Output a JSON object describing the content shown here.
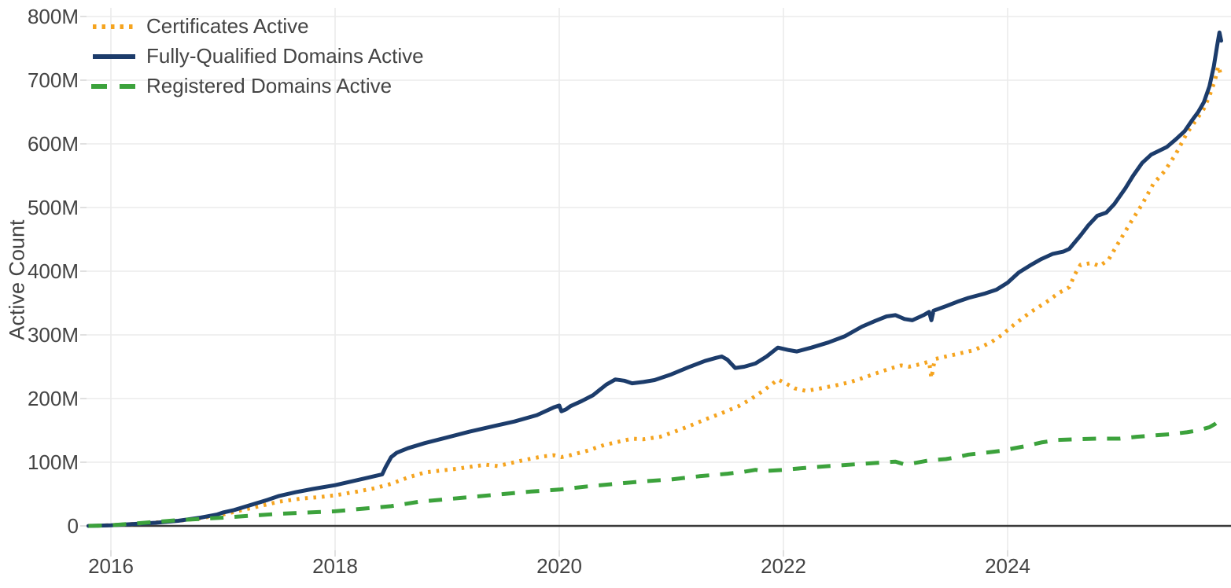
{
  "chart_data": {
    "type": "line",
    "title": "",
    "xlabel": "",
    "ylabel": "Active Count",
    "grid": true,
    "legend_position": "top-left",
    "x_range_years": [
      2015.78,
      2025.96
    ],
    "ylim_millions": [
      0,
      800
    ],
    "y_ticks": [
      {
        "label": "0",
        "value": 0
      },
      {
        "label": "100M",
        "value": 100
      },
      {
        "label": "200M",
        "value": 200
      },
      {
        "label": "300M",
        "value": 300
      },
      {
        "label": "400M",
        "value": 400
      },
      {
        "label": "500M",
        "value": 500
      },
      {
        "label": "600M",
        "value": 600
      },
      {
        "label": "700M",
        "value": 700
      },
      {
        "label": "800M",
        "value": 800
      }
    ],
    "x_ticks": [
      {
        "label": "2016",
        "year": 2016
      },
      {
        "label": "2018",
        "year": 2018
      },
      {
        "label": "2020",
        "year": 2020
      },
      {
        "label": "2022",
        "year": 2022
      },
      {
        "label": "2024",
        "year": 2024
      }
    ],
    "series": [
      {
        "name": "Certificates Active",
        "color": "#f5a41f",
        "style": "dotted",
        "points_year_millions": [
          [
            2015.8,
            0
          ],
          [
            2016.0,
            1
          ],
          [
            2016.3,
            4
          ],
          [
            2016.6,
            8
          ],
          [
            2016.8,
            12
          ],
          [
            2017.0,
            18
          ],
          [
            2017.2,
            26
          ],
          [
            2017.35,
            32
          ],
          [
            2017.5,
            38
          ],
          [
            2017.7,
            43
          ],
          [
            2017.85,
            45
          ],
          [
            2018.0,
            48
          ],
          [
            2018.2,
            54
          ],
          [
            2018.35,
            59
          ],
          [
            2018.5,
            66
          ],
          [
            2018.65,
            76
          ],
          [
            2018.8,
            84
          ],
          [
            2018.95,
            87
          ],
          [
            2019.1,
            90
          ],
          [
            2019.25,
            94
          ],
          [
            2019.35,
            96
          ],
          [
            2019.45,
            94
          ],
          [
            2019.55,
            98
          ],
          [
            2019.7,
            104
          ],
          [
            2019.85,
            109
          ],
          [
            2019.95,
            111
          ],
          [
            2020.02,
            108
          ],
          [
            2020.1,
            111
          ],
          [
            2020.25,
            118
          ],
          [
            2020.4,
            127
          ],
          [
            2020.55,
            133
          ],
          [
            2020.65,
            137
          ],
          [
            2020.75,
            136
          ],
          [
            2020.9,
            140
          ],
          [
            2021.0,
            146
          ],
          [
            2021.15,
            156
          ],
          [
            2021.3,
            167
          ],
          [
            2021.45,
            177
          ],
          [
            2021.6,
            188
          ],
          [
            2021.7,
            198
          ],
          [
            2021.8,
            210
          ],
          [
            2021.88,
            220
          ],
          [
            2021.95,
            230
          ],
          [
            2022.03,
            223
          ],
          [
            2022.1,
            216
          ],
          [
            2022.2,
            212
          ],
          [
            2022.3,
            215
          ],
          [
            2022.45,
            220
          ],
          [
            2022.6,
            226
          ],
          [
            2022.72,
            233
          ],
          [
            2022.85,
            241
          ],
          [
            2022.95,
            247
          ],
          [
            2023.05,
            252
          ],
          [
            2023.12,
            250
          ],
          [
            2023.22,
            254
          ],
          [
            2023.3,
            258
          ],
          [
            2023.32,
            232
          ],
          [
            2023.35,
            262
          ],
          [
            2023.45,
            266
          ],
          [
            2023.55,
            270
          ],
          [
            2023.7,
            276
          ],
          [
            2023.85,
            288
          ],
          [
            2023.95,
            300
          ],
          [
            2024.05,
            315
          ],
          [
            2024.2,
            335
          ],
          [
            2024.35,
            352
          ],
          [
            2024.45,
            365
          ],
          [
            2024.55,
            375
          ],
          [
            2024.6,
            395
          ],
          [
            2024.65,
            410
          ],
          [
            2024.75,
            413
          ],
          [
            2024.82,
            408
          ],
          [
            2024.9,
            418
          ],
          [
            2025.0,
            448
          ],
          [
            2025.1,
            477
          ],
          [
            2025.2,
            505
          ],
          [
            2025.3,
            537
          ],
          [
            2025.4,
            557
          ],
          [
            2025.5,
            584
          ],
          [
            2025.6,
            617
          ],
          [
            2025.68,
            637
          ],
          [
            2025.75,
            655
          ],
          [
            2025.8,
            675
          ],
          [
            2025.85,
            700
          ],
          [
            2025.88,
            722
          ],
          [
            2025.9,
            710
          ]
        ]
      },
      {
        "name": "Fully-Qualified Domains Active",
        "color": "#1c3c6b",
        "style": "solid",
        "points_year_millions": [
          [
            2015.8,
            0
          ],
          [
            2016.0,
            1
          ],
          [
            2016.2,
            3
          ],
          [
            2016.4,
            5
          ],
          [
            2016.6,
            8
          ],
          [
            2016.8,
            13
          ],
          [
            2016.95,
            18
          ],
          [
            2017.0,
            21
          ],
          [
            2017.1,
            25
          ],
          [
            2017.25,
            33
          ],
          [
            2017.4,
            41
          ],
          [
            2017.5,
            47
          ],
          [
            2017.65,
            53
          ],
          [
            2017.8,
            58
          ],
          [
            2018.0,
            64
          ],
          [
            2018.15,
            70
          ],
          [
            2018.3,
            76
          ],
          [
            2018.42,
            81
          ],
          [
            2018.45,
            92
          ],
          [
            2018.5,
            108
          ],
          [
            2018.55,
            115
          ],
          [
            2018.65,
            122
          ],
          [
            2018.8,
            130
          ],
          [
            2019.0,
            139
          ],
          [
            2019.2,
            148
          ],
          [
            2019.4,
            156
          ],
          [
            2019.6,
            164
          ],
          [
            2019.8,
            174
          ],
          [
            2019.95,
            186
          ],
          [
            2020.0,
            189
          ],
          [
            2020.02,
            180
          ],
          [
            2020.06,
            183
          ],
          [
            2020.1,
            188
          ],
          [
            2020.2,
            196
          ],
          [
            2020.3,
            205
          ],
          [
            2020.42,
            222
          ],
          [
            2020.5,
            230
          ],
          [
            2020.58,
            228
          ],
          [
            2020.65,
            224
          ],
          [
            2020.75,
            226
          ],
          [
            2020.85,
            229
          ],
          [
            2021.0,
            238
          ],
          [
            2021.15,
            249
          ],
          [
            2021.3,
            259
          ],
          [
            2021.4,
            264
          ],
          [
            2021.45,
            266
          ],
          [
            2021.5,
            261
          ],
          [
            2021.57,
            248
          ],
          [
            2021.65,
            250
          ],
          [
            2021.75,
            255
          ],
          [
            2021.85,
            266
          ],
          [
            2021.95,
            280
          ],
          [
            2022.05,
            276
          ],
          [
            2022.12,
            274
          ],
          [
            2022.25,
            280
          ],
          [
            2022.4,
            288
          ],
          [
            2022.55,
            298
          ],
          [
            2022.7,
            313
          ],
          [
            2022.82,
            322
          ],
          [
            2022.92,
            329
          ],
          [
            2023.0,
            331
          ],
          [
            2023.08,
            325
          ],
          [
            2023.15,
            323
          ],
          [
            2023.25,
            331
          ],
          [
            2023.3,
            336
          ],
          [
            2023.32,
            323
          ],
          [
            2023.34,
            338
          ],
          [
            2023.45,
            345
          ],
          [
            2023.55,
            352
          ],
          [
            2023.65,
            358
          ],
          [
            2023.8,
            365
          ],
          [
            2023.9,
            371
          ],
          [
            2024.0,
            382
          ],
          [
            2024.1,
            398
          ],
          [
            2024.2,
            409
          ],
          [
            2024.3,
            419
          ],
          [
            2024.4,
            427
          ],
          [
            2024.5,
            431
          ],
          [
            2024.55,
            435
          ],
          [
            2024.65,
            456
          ],
          [
            2024.72,
            472
          ],
          [
            2024.8,
            487
          ],
          [
            2024.88,
            492
          ],
          [
            2024.95,
            505
          ],
          [
            2025.05,
            530
          ],
          [
            2025.12,
            550
          ],
          [
            2025.2,
            570
          ],
          [
            2025.28,
            583
          ],
          [
            2025.35,
            589
          ],
          [
            2025.42,
            595
          ],
          [
            2025.5,
            607
          ],
          [
            2025.58,
            620
          ],
          [
            2025.65,
            638
          ],
          [
            2025.7,
            650
          ],
          [
            2025.75,
            665
          ],
          [
            2025.8,
            690
          ],
          [
            2025.84,
            722
          ],
          [
            2025.87,
            755
          ],
          [
            2025.89,
            775
          ],
          [
            2025.905,
            762
          ]
        ]
      },
      {
        "name": "Registered Domains Active",
        "color": "#3ca23c",
        "style": "dashed",
        "points_year_millions": [
          [
            2015.8,
            0
          ],
          [
            2016.0,
            1
          ],
          [
            2016.3,
            5
          ],
          [
            2016.6,
            9
          ],
          [
            2016.8,
            11
          ],
          [
            2017.0,
            13
          ],
          [
            2017.25,
            16
          ],
          [
            2017.5,
            19
          ],
          [
            2017.75,
            21
          ],
          [
            2018.0,
            23
          ],
          [
            2018.25,
            27
          ],
          [
            2018.5,
            31
          ],
          [
            2018.75,
            38
          ],
          [
            2019.0,
            42
          ],
          [
            2019.25,
            46
          ],
          [
            2019.5,
            50
          ],
          [
            2019.75,
            54
          ],
          [
            2020.0,
            57
          ],
          [
            2020.25,
            62
          ],
          [
            2020.5,
            66
          ],
          [
            2020.75,
            70
          ],
          [
            2021.0,
            73
          ],
          [
            2021.25,
            78
          ],
          [
            2021.5,
            82
          ],
          [
            2021.65,
            85
          ],
          [
            2021.75,
            88
          ],
          [
            2021.82,
            86
          ],
          [
            2022.0,
            88
          ],
          [
            2022.25,
            92
          ],
          [
            2022.5,
            95
          ],
          [
            2022.75,
            98
          ],
          [
            2023.0,
            101
          ],
          [
            2023.07,
            97
          ],
          [
            2023.15,
            98
          ],
          [
            2023.3,
            103
          ],
          [
            2023.45,
            105
          ],
          [
            2023.55,
            108
          ],
          [
            2023.65,
            112
          ],
          [
            2023.8,
            115
          ],
          [
            2023.95,
            118
          ],
          [
            2024.0,
            120
          ],
          [
            2024.15,
            125
          ],
          [
            2024.3,
            131
          ],
          [
            2024.45,
            135
          ],
          [
            2024.6,
            136
          ],
          [
            2024.8,
            137
          ],
          [
            2025.0,
            137
          ],
          [
            2025.15,
            140
          ],
          [
            2025.3,
            142
          ],
          [
            2025.45,
            144
          ],
          [
            2025.6,
            147
          ],
          [
            2025.7,
            150
          ],
          [
            2025.8,
            155
          ],
          [
            2025.85,
            160
          ],
          [
            2025.9,
            167
          ]
        ]
      }
    ],
    "colors": {
      "axis_text": "#444444",
      "gridline": "#ebebeb",
      "tick_mark": "#d9d9d9",
      "zero_line": "#3a3a3a",
      "background": "#ffffff"
    }
  }
}
